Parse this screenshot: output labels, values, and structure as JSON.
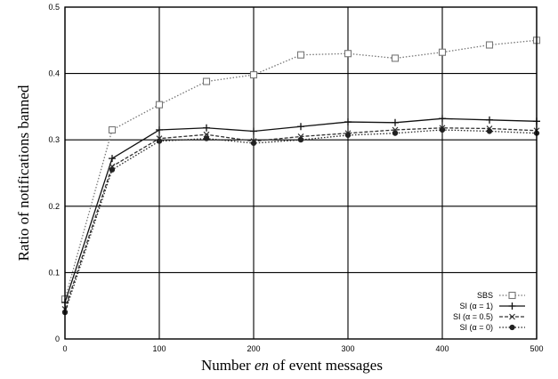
{
  "chart_data": {
    "type": "line",
    "title": "",
    "xlabel_parts": [
      "Number ",
      "en",
      " of event messages"
    ],
    "ylabel": "Ratio of notifications banned",
    "xlim": [
      0,
      500
    ],
    "ylim": [
      0,
      0.5
    ],
    "xticks": [
      "0",
      "100",
      "200",
      "300",
      "400",
      "500"
    ],
    "yticks": [
      "0",
      "0.1",
      "0.2",
      "0.3",
      "0.4",
      "0.5"
    ],
    "grid": true,
    "legend_position": "bottom-right",
    "x": [
      0,
      50,
      100,
      150,
      200,
      250,
      300,
      350,
      400,
      450,
      500
    ],
    "series": [
      {
        "name": "SBS",
        "marker": "square",
        "style": "dotted",
        "color": "#777777",
        "values": [
          0.06,
          0.315,
          0.353,
          0.388,
          0.398,
          0.428,
          0.43,
          0.423,
          0.432,
          0.443,
          0.45
        ]
      },
      {
        "name": "SI (α = 1)",
        "marker": "plus",
        "style": "solid",
        "color": "#111111",
        "values": [
          0.055,
          0.272,
          0.315,
          0.318,
          0.313,
          0.32,
          0.327,
          0.326,
          0.332,
          0.33,
          0.328
        ]
      },
      {
        "name": "SI (α = 0.5)",
        "marker": "cross",
        "style": "dashed",
        "color": "#333333",
        "values": [
          0.045,
          0.26,
          0.302,
          0.308,
          0.298,
          0.305,
          0.31,
          0.315,
          0.318,
          0.317,
          0.314
        ]
      },
      {
        "name": "SI (α = 0)",
        "marker": "dot",
        "style": "dotted",
        "color": "#222222",
        "values": [
          0.04,
          0.255,
          0.298,
          0.302,
          0.295,
          0.3,
          0.307,
          0.31,
          0.315,
          0.313,
          0.31
        ]
      }
    ]
  }
}
